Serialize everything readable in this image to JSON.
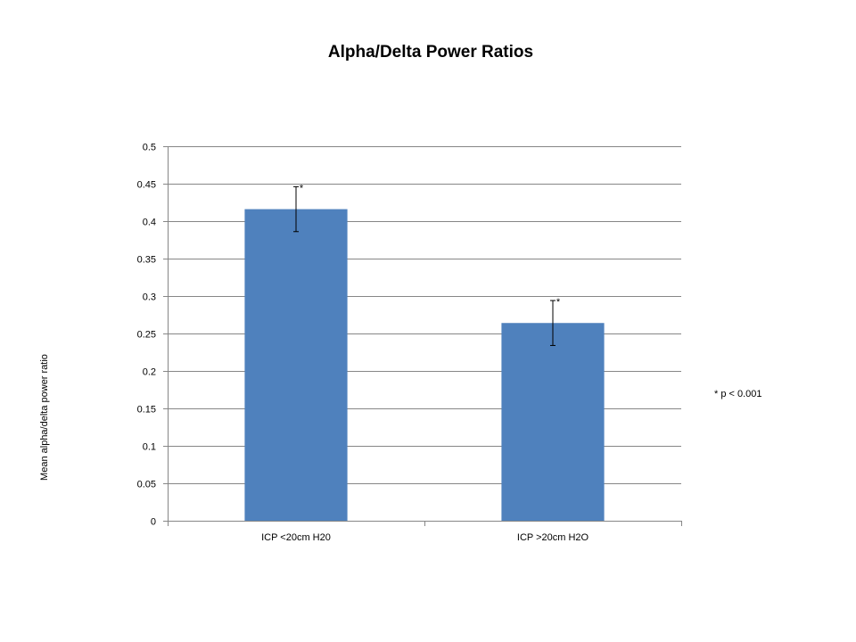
{
  "chart_data": {
    "type": "bar",
    "title": "Alpha/Delta Power Ratios",
    "xlabel": "",
    "ylabel": "Mean alpha/delta power ratio",
    "categories": [
      "ICP <20cm H20",
      "ICP >20cm H2O"
    ],
    "values": [
      0.416,
      0.264
    ],
    "error": [
      0.03,
      0.03
    ],
    "markers": [
      "*",
      "*"
    ],
    "ylim": [
      0,
      0.5
    ],
    "yticks": [
      "0",
      "0.05",
      "0.1",
      "0.15",
      "0.2",
      "0.25",
      "0.3",
      "0.35",
      "0.4",
      "0.45",
      "0.5"
    ],
    "ytick_values": [
      0,
      0.05,
      0.1,
      0.15,
      0.2,
      0.25,
      0.3,
      0.35,
      0.4,
      0.45,
      0.5
    ],
    "grid": true,
    "bar_color": "#4F81BD",
    "annotation": "* p < 0.001"
  }
}
